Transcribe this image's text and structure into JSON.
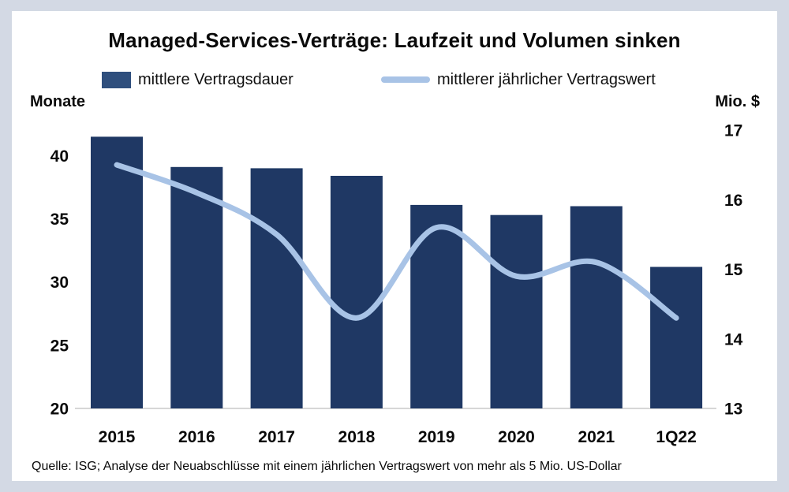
{
  "title": "Managed-Services-Verträge: Laufzeit und Volumen sinken",
  "legend": {
    "bar_label": "mittlere Vertragsdauer",
    "line_label": "mittlerer jährlicher Vertragswert"
  },
  "axes": {
    "left_unit": "Monate",
    "right_unit": "Mio. $"
  },
  "footer": "Quelle: ISG; Analyse der Neuabschlüsse mit einem jährlichen Vertragswert von mehr als 5 Mio. US-Dollar",
  "colors": {
    "bar": "#1f3864",
    "legend_bar": "#2f4f7d",
    "line": "#a8c3e6",
    "axis_line": "#bfbfbf",
    "frame": "#d3d9e4"
  },
  "chart_data": {
    "type": "combo",
    "title": "Managed-Services-Verträge: Laufzeit und Volumen sinken",
    "categories": [
      "2015",
      "2016",
      "2017",
      "2018",
      "2019",
      "2020",
      "2021",
      "1Q22"
    ],
    "series": [
      {
        "name": "mittlere Vertragsdauer",
        "type": "bar",
        "axis": "left",
        "unit": "Monate",
        "values": [
          41.5,
          39.1,
          39.0,
          38.4,
          36.1,
          35.3,
          36.0,
          31.2
        ]
      },
      {
        "name": "mittlerer jährlicher Vertragswert",
        "type": "line",
        "axis": "right",
        "unit": "Mio. $",
        "values": [
          16.5,
          16.1,
          15.5,
          14.3,
          15.6,
          14.9,
          15.1,
          14.3
        ]
      }
    ],
    "left_axis": {
      "label": "Monate",
      "ticks": [
        40,
        35,
        30,
        25,
        20
      ],
      "min": 20,
      "max": 40
    },
    "right_axis": {
      "label": "Mio. $",
      "ticks": [
        17,
        16,
        15,
        14,
        13
      ],
      "min": 13,
      "max": 17
    },
    "legend_position": "top",
    "grid": false,
    "source": "Quelle: ISG; Analyse der Neuabschlüsse mit einem jährlichen Vertragswert von mehr als 5 Mio. US-Dollar"
  }
}
